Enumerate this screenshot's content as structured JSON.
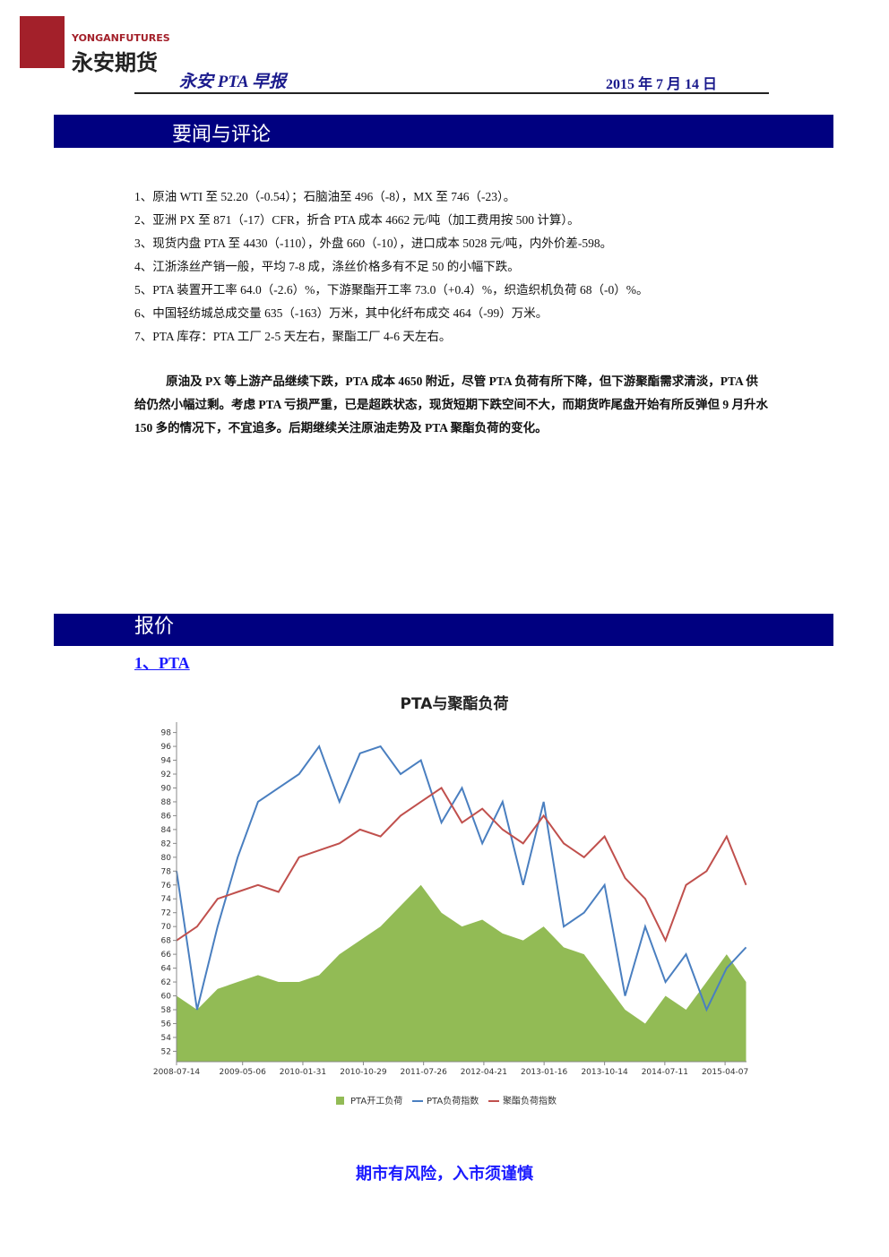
{
  "header": {
    "brand_en": "YONGANFUTURES",
    "brand_cn": "永安期货",
    "report_title": "永安 PTA 早报",
    "date": "2015 年 7 月 14 日"
  },
  "section1": {
    "title": "要闻与评论",
    "items": [
      "1、原油 WTI 至 52.20（-0.54）；石脑油至 496（-8），MX 至 746（-23）。",
      "2、亚洲 PX 至 871（-17）CFR，折合 PTA 成本 4662 元/吨（加工费用按 500 计算）。",
      "3、现货内盘 PTA 至 4430（-110），外盘 660（-10），进口成本 5028 元/吨，内外价差-598。",
      "4、江浙涤丝产销一般，平均 7-8 成，涤丝价格多有不足 50 的小幅下跌。",
      "5、PTA 装置开工率 64.0（-2.6）%，下游聚酯开工率 73.0（+0.4）%，织造织机负荷 68（-0）%。",
      "6、中国轻纺城总成交量 635（-163）万米，其中化纤布成交 464（-99）万米。",
      "7、PTA  库存：PTA 工厂 2-5 天左右，聚酯工厂 4-6 天左右。"
    ],
    "comment": "原油及 PX 等上游产品继续下跌，PTA 成本 4650 附近，尽管 PTA 负荷有所下降，但下游聚酯需求清淡，PTA 供给仍然小幅过剩。考虑 PTA 亏损严重，已是超跌状态，现货短期下跌空间不大，而期货昨尾盘开始有所反弹但 9 月升水 150 多的情况下，不宜追多。后期继续关注原油走势及 PTA 聚酯负荷的变化。"
  },
  "section2": {
    "title": "报价",
    "subtitle": "1、PTA"
  },
  "chart_data": {
    "type": "line",
    "title": "PTA与聚酯负荷",
    "x": [
      "2008-07-14",
      "2008-10-14",
      "2009-01-14",
      "2009-04-14",
      "2009-07-14",
      "2009-10-14",
      "2010-01-14",
      "2010-04-14",
      "2010-07-14",
      "2010-10-14",
      "2011-01-14",
      "2011-04-14",
      "2011-07-14",
      "2011-10-14",
      "2012-01-14",
      "2012-04-14",
      "2012-07-14",
      "2012-10-14",
      "2013-01-14",
      "2013-04-14",
      "2013-07-14",
      "2013-10-14",
      "2014-01-14",
      "2014-04-14",
      "2014-07-14",
      "2014-10-14",
      "2015-01-14",
      "2015-04-14",
      "2015-07-10"
    ],
    "series": [
      {
        "name": "PTA开工负荷",
        "color": "#92bb55",
        "area": true,
        "values": [
          60,
          58,
          61,
          62,
          63,
          62,
          62,
          63,
          66,
          68,
          70,
          73,
          76,
          72,
          70,
          71,
          69,
          68,
          70,
          67,
          66,
          62,
          58,
          56,
          60,
          58,
          62,
          66,
          62
        ]
      },
      {
        "name": "PTA负荷指数",
        "color": "#4a7fc0",
        "values": [
          78,
          58,
          70,
          80,
          88,
          90,
          92,
          96,
          88,
          95,
          96,
          92,
          94,
          85,
          90,
          82,
          88,
          76,
          88,
          70,
          72,
          76,
          60,
          70,
          62,
          66,
          58,
          64,
          67
        ]
      },
      {
        "name": "聚酯负荷指数",
        "color": "#c0504d",
        "values": [
          68,
          70,
          74,
          75,
          76,
          75,
          80,
          81,
          82,
          84,
          83,
          86,
          88,
          90,
          85,
          87,
          84,
          82,
          86,
          82,
          80,
          83,
          77,
          74,
          68,
          76,
          78,
          83,
          76
        ]
      }
    ],
    "xlim": [
      "2008-07-14",
      "2015-07-12"
    ],
    "xticks": [
      "2008-07-14",
      "2009-05-06",
      "2010-01-31",
      "2010-10-29",
      "2011-07-26",
      "2012-04-21",
      "2013-01-16",
      "2013-10-14",
      "2014-07-11",
      "2015-04-07"
    ],
    "ylim": [
      50.5,
      99.5
    ],
    "yticks": [
      98,
      96,
      94,
      92,
      90,
      88,
      86,
      84,
      82,
      80,
      78,
      76,
      74,
      72,
      70,
      68,
      66,
      64,
      62,
      60,
      58,
      56,
      54,
      52
    ],
    "legend": "bottom"
  },
  "footer": "期市有风险，入市须谨慎"
}
